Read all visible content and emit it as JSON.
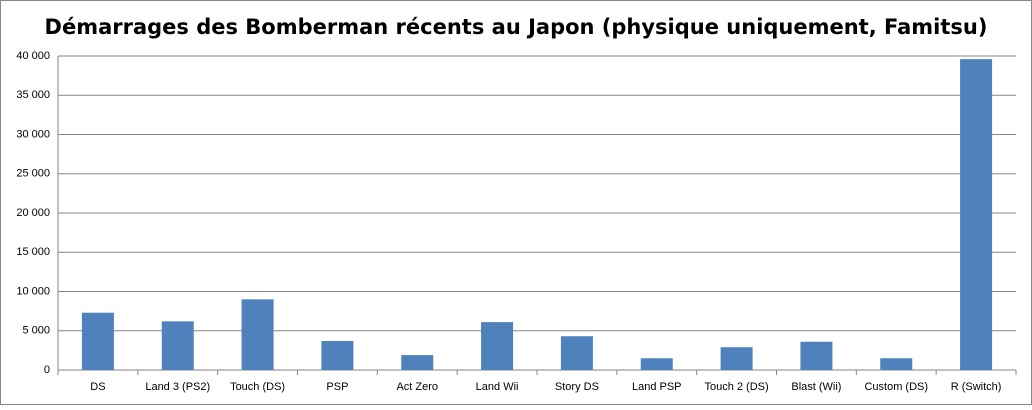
{
  "chart_data": {
    "type": "bar",
    "title": "Démarrages des Bomberman récents au Japon (physique uniquement, Famitsu)",
    "categories": [
      "DS",
      "Land 3 (PS2)",
      "Touch (DS)",
      "PSP",
      "Act Zero",
      "Land Wii",
      "Story DS",
      "Land PSP",
      "Touch 2 (DS)",
      "Blast (Wii)",
      "Custom (DS)",
      "R (Switch)"
    ],
    "values": [
      7300,
      6200,
      9000,
      3700,
      1900,
      6100,
      4300,
      1500,
      2900,
      3600,
      1500,
      39600
    ],
    "color": "#4f81bd",
    "ylim": [
      0,
      40000
    ],
    "yticks": [
      0,
      {
        "value": 5000,
        "label": "5 000"
      },
      {
        "value": 10000,
        "label": "10 000"
      },
      {
        "value": 15000,
        "label": "15 000"
      },
      {
        "value": 20000,
        "label": "20 000"
      },
      {
        "value": 25000,
        "label": "25 000"
      },
      {
        "value": 30000,
        "label": "30 000"
      },
      {
        "value": 35000,
        "label": "35 000"
      },
      {
        "value": 40000,
        "label": "40 000"
      }
    ],
    "grid": true
  }
}
